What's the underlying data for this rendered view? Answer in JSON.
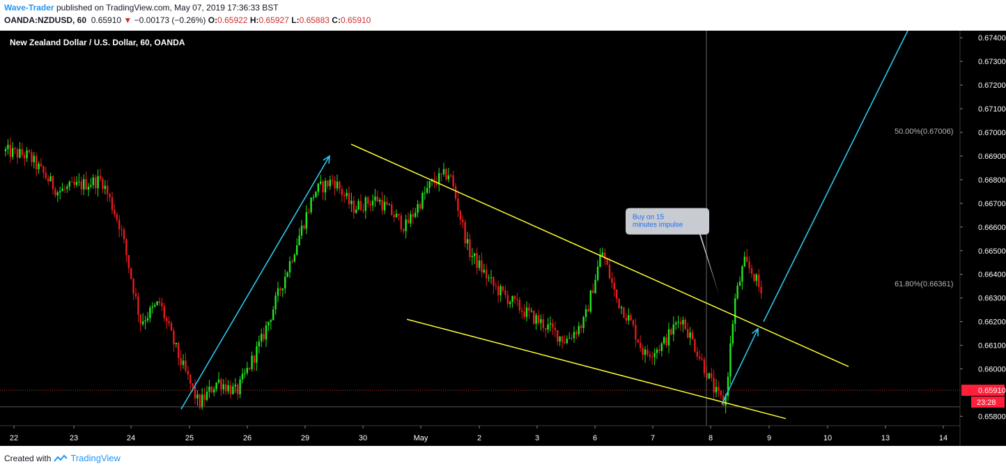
{
  "header": {
    "author": "Wave-Trader",
    "published_text": "published on TradingView.com, May 07, 2019 17:36:33 BST",
    "symbol": "OANDA:NZDUSD, 60",
    "last_price": "0.65910",
    "change_arrow": "▼",
    "change": "−0.00173 (−0.26%)",
    "open_label": "O:",
    "open": "0.65922",
    "high_label": "H:",
    "high": "0.65927",
    "low_label": "L:",
    "low": "0.65883",
    "close_label": "C:",
    "close": "0.65910"
  },
  "footer": {
    "created_with": "Created with",
    "brand": "TradingView"
  },
  "chart_data": {
    "type": "candlestick",
    "title": "New Zealand Dollar / U.S. Dollar, 60, OANDA",
    "colors": {
      "background": "#000000",
      "up": "#22e822",
      "down": "#e81b1b",
      "trendline": "#ffff33",
      "arrow": "#2ec8f0",
      "price_line": "#c0392b",
      "price_label_bg": "#ff1f3a",
      "text": "#ffffff",
      "muted": "#b2b5be"
    },
    "y_axis": {
      "ylim": [
        0.6576,
        0.6743
      ],
      "ticks": [
        "0.67400",
        "0.67300",
        "0.67200",
        "0.67100",
        "0.67000",
        "0.66900",
        "0.66800",
        "0.66700",
        "0.66600",
        "0.66500",
        "0.66400",
        "0.66300",
        "0.66200",
        "0.66100",
        "0.66000",
        "0.65800"
      ]
    },
    "x_axis": {
      "ticks": [
        "22",
        "23",
        "24",
        "25",
        "26",
        "29",
        "30",
        "May",
        "2",
        "3",
        "6",
        "7",
        "8",
        "9",
        "10",
        "13",
        "14"
      ]
    },
    "current_price": {
      "value": 0.6591,
      "label": "0.65910",
      "countdown": "23:28"
    },
    "fib_levels": [
      {
        "label": "50.00%(0.67006)",
        "value": 0.67006
      },
      {
        "label": "61.80%(0.66361)",
        "value": 0.66361
      }
    ],
    "callout": {
      "line1": "Buy on 15",
      "line2": "minutes impulse"
    },
    "price_path": [
      [
        "22",
        0.669
      ],
      [
        "22",
        0.6675
      ],
      [
        "23",
        0.6678
      ],
      [
        "23",
        0.668
      ],
      [
        "23",
        0.666
      ],
      [
        "24",
        0.662
      ],
      [
        "24",
        0.6628
      ],
      [
        "24",
        0.6605
      ],
      [
        "25",
        0.6585
      ],
      [
        "25",
        0.6595
      ],
      [
        "25",
        0.659
      ],
      [
        "26",
        0.6612
      ],
      [
        "26",
        0.6645
      ],
      [
        "29",
        0.6675
      ],
      [
        "29",
        0.668
      ],
      [
        "29",
        0.6668
      ],
      [
        "30",
        0.6672
      ],
      [
        "30",
        0.666
      ],
      [
        "May",
        0.6678
      ],
      [
        "May",
        0.6683
      ],
      [
        "May",
        0.665
      ],
      [
        "2",
        0.6635
      ],
      [
        "2",
        0.6625
      ],
      [
        "3",
        0.6618
      ],
      [
        "3",
        0.6612
      ],
      [
        "3",
        0.662
      ],
      [
        "6",
        0.665
      ],
      [
        "6",
        0.663
      ],
      [
        "6",
        0.662
      ],
      [
        "6",
        0.6606
      ],
      [
        "7",
        0.661
      ],
      [
        "7",
        0.6622
      ],
      [
        "7",
        0.6605
      ],
      [
        "8",
        0.659
      ],
      [
        "8",
        0.6585
      ],
      [
        "8",
        0.6628
      ],
      [
        "8",
        0.6645
      ],
      [
        "8",
        0.664
      ],
      [
        "8",
        0.663
      ]
    ],
    "grid": false,
    "legend": "none"
  }
}
